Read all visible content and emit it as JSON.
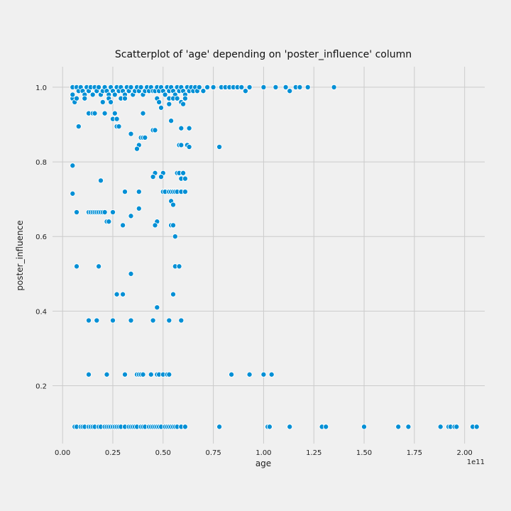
{
  "chart_data": {
    "type": "scatter",
    "title": "Scatterplot of 'age' depending on 'poster_influence' column",
    "xlabel": "age",
    "ylabel": "poster_influence",
    "x_offset_label": "1e11",
    "xlim": [
      -0.05,
      2.1
    ],
    "ylim": [
      0.045,
      1.055
    ],
    "x_scale_note": "x values expressed in units of 1e11",
    "xticks": [
      0.0,
      0.25,
      0.5,
      0.75,
      1.0,
      1.25,
      1.5,
      1.75,
      2.0
    ],
    "xtick_labels": [
      "0.00",
      "0.25",
      "0.50",
      "0.75",
      "1.00",
      "1.25",
      "1.50",
      "1.75",
      "2.00"
    ],
    "yticks": [
      0.2,
      0.4,
      0.6,
      0.8,
      1.0
    ],
    "ytick_labels": [
      "0.2",
      "0.4",
      "0.6",
      "0.8",
      "1.0"
    ],
    "grid": true,
    "marker_color": "#008fd5",
    "marker_edge": "#ffffff",
    "points": [
      [
        0.05,
        1.0
      ],
      [
        0.07,
        1.0
      ],
      [
        0.08,
        0.99
      ],
      [
        0.09,
        1.0
      ],
      [
        0.1,
        0.99
      ],
      [
        0.11,
        0.98
      ],
      [
        0.12,
        1.0
      ],
      [
        0.13,
        0.99
      ],
      [
        0.14,
        1.0
      ],
      [
        0.15,
        0.98
      ],
      [
        0.16,
        1.0
      ],
      [
        0.17,
        0.99
      ],
      [
        0.18,
        1.0
      ],
      [
        0.19,
        0.98
      ],
      [
        0.2,
        0.99
      ],
      [
        0.21,
        1.0
      ],
      [
        0.22,
        0.99
      ],
      [
        0.23,
        0.98
      ],
      [
        0.24,
        1.0
      ],
      [
        0.25,
        0.99
      ],
      [
        0.26,
        0.98
      ],
      [
        0.27,
        1.0
      ],
      [
        0.28,
        0.99
      ],
      [
        0.29,
        1.0
      ],
      [
        0.3,
        0.99
      ],
      [
        0.31,
        0.98
      ],
      [
        0.32,
        1.0
      ],
      [
        0.33,
        0.99
      ],
      [
        0.34,
        1.0
      ],
      [
        0.35,
        0.98
      ],
      [
        0.36,
        0.99
      ],
      [
        0.37,
        1.0
      ],
      [
        0.38,
        0.99
      ],
      [
        0.39,
        1.0
      ],
      [
        0.4,
        0.98
      ],
      [
        0.41,
        0.99
      ],
      [
        0.42,
        1.0
      ],
      [
        0.43,
        0.99
      ],
      [
        0.44,
        1.0
      ],
      [
        0.45,
        0.99
      ],
      [
        0.46,
        0.99
      ],
      [
        0.47,
        1.0
      ],
      [
        0.48,
        0.99
      ],
      [
        0.49,
        1.0
      ],
      [
        0.5,
        0.99
      ],
      [
        0.51,
        0.98
      ],
      [
        0.52,
        1.0
      ],
      [
        0.53,
        0.99
      ],
      [
        0.54,
        1.0
      ],
      [
        0.55,
        0.99
      ],
      [
        0.56,
        0.98
      ],
      [
        0.57,
        1.0
      ],
      [
        0.58,
        0.99
      ],
      [
        0.59,
        1.0
      ],
      [
        0.6,
        0.99
      ],
      [
        0.61,
        0.98
      ],
      [
        0.62,
        1.0
      ],
      [
        0.63,
        0.99
      ],
      [
        0.64,
        1.0
      ],
      [
        0.65,
        0.99
      ],
      [
        0.66,
        1.0
      ],
      [
        0.67,
        0.99
      ],
      [
        0.68,
        1.0
      ],
      [
        0.7,
        0.99
      ],
      [
        0.72,
        1.0
      ],
      [
        0.75,
        1.0
      ],
      [
        0.79,
        1.0
      ],
      [
        0.81,
        1.0
      ],
      [
        0.83,
        1.0
      ],
      [
        0.85,
        1.0
      ],
      [
        0.87,
        1.0
      ],
      [
        0.89,
        1.0
      ],
      [
        0.91,
        0.99
      ],
      [
        0.93,
        1.0
      ],
      [
        1.0,
        1.0
      ],
      [
        1.06,
        1.0
      ],
      [
        1.11,
        1.0
      ],
      [
        1.13,
        0.99
      ],
      [
        1.16,
        1.0
      ],
      [
        1.18,
        1.0
      ],
      [
        1.22,
        1.0
      ],
      [
        1.35,
        1.0
      ],
      [
        0.05,
        0.97
      ],
      [
        0.06,
        0.96
      ],
      [
        0.07,
        0.97
      ],
      [
        0.05,
        0.98
      ],
      [
        0.11,
        0.97
      ],
      [
        0.2,
        0.96
      ],
      [
        0.23,
        0.97
      ],
      [
        0.24,
        0.96
      ],
      [
        0.29,
        0.97
      ],
      [
        0.31,
        0.97
      ],
      [
        0.47,
        0.97
      ],
      [
        0.48,
        0.96
      ],
      [
        0.53,
        0.97
      ],
      [
        0.53,
        0.955
      ],
      [
        0.55,
        0.97
      ],
      [
        0.57,
        0.97
      ],
      [
        0.59,
        0.96
      ],
      [
        0.6,
        0.955
      ],
      [
        0.61,
        0.97
      ],
      [
        0.49,
        0.945
      ],
      [
        0.13,
        0.93
      ],
      [
        0.15,
        0.93
      ],
      [
        0.16,
        0.93
      ],
      [
        0.21,
        0.93
      ],
      [
        0.26,
        0.93
      ],
      [
        0.4,
        0.93
      ],
      [
        0.25,
        0.915
      ],
      [
        0.27,
        0.915
      ],
      [
        0.54,
        0.91
      ],
      [
        0.08,
        0.895
      ],
      [
        0.27,
        0.895
      ],
      [
        0.28,
        0.895
      ],
      [
        0.59,
        0.89
      ],
      [
        0.63,
        0.89
      ],
      [
        0.45,
        0.885
      ],
      [
        0.46,
        0.885
      ],
      [
        0.34,
        0.875
      ],
      [
        0.39,
        0.865
      ],
      [
        0.4,
        0.865
      ],
      [
        0.41,
        0.865
      ],
      [
        0.38,
        0.845
      ],
      [
        0.58,
        0.845
      ],
      [
        0.59,
        0.845
      ],
      [
        0.62,
        0.845
      ],
      [
        0.63,
        0.84
      ],
      [
        0.37,
        0.835
      ],
      [
        0.78,
        0.84
      ],
      [
        0.05,
        0.79
      ],
      [
        0.46,
        0.77
      ],
      [
        0.5,
        0.77
      ],
      [
        0.57,
        0.77
      ],
      [
        0.58,
        0.77
      ],
      [
        0.6,
        0.77
      ],
      [
        0.45,
        0.76
      ],
      [
        0.49,
        0.76
      ],
      [
        0.59,
        0.755
      ],
      [
        0.61,
        0.755
      ],
      [
        0.19,
        0.75
      ],
      [
        0.31,
        0.72
      ],
      [
        0.38,
        0.72
      ],
      [
        0.5,
        0.72
      ],
      [
        0.51,
        0.72
      ],
      [
        0.53,
        0.72
      ],
      [
        0.54,
        0.72
      ],
      [
        0.55,
        0.72
      ],
      [
        0.56,
        0.72
      ],
      [
        0.57,
        0.72
      ],
      [
        0.59,
        0.72
      ],
      [
        0.61,
        0.72
      ],
      [
        0.05,
        0.715
      ],
      [
        0.54,
        0.695
      ],
      [
        0.55,
        0.685
      ],
      [
        0.38,
        0.675
      ],
      [
        0.07,
        0.665
      ],
      [
        0.13,
        0.665
      ],
      [
        0.14,
        0.665
      ],
      [
        0.15,
        0.665
      ],
      [
        0.16,
        0.665
      ],
      [
        0.17,
        0.665
      ],
      [
        0.18,
        0.665
      ],
      [
        0.19,
        0.665
      ],
      [
        0.2,
        0.665
      ],
      [
        0.21,
        0.665
      ],
      [
        0.25,
        0.665
      ],
      [
        0.34,
        0.655
      ],
      [
        0.22,
        0.64
      ],
      [
        0.23,
        0.64
      ],
      [
        0.47,
        0.64
      ],
      [
        0.3,
        0.63
      ],
      [
        0.46,
        0.63
      ],
      [
        0.54,
        0.63
      ],
      [
        0.55,
        0.63
      ],
      [
        0.56,
        0.6
      ],
      [
        0.07,
        0.52
      ],
      [
        0.18,
        0.52
      ],
      [
        0.56,
        0.52
      ],
      [
        0.58,
        0.52
      ],
      [
        0.34,
        0.5
      ],
      [
        0.27,
        0.445
      ],
      [
        0.3,
        0.445
      ],
      [
        0.55,
        0.445
      ],
      [
        0.47,
        0.41
      ],
      [
        0.13,
        0.375
      ],
      [
        0.17,
        0.375
      ],
      [
        0.25,
        0.375
      ],
      [
        0.34,
        0.375
      ],
      [
        0.45,
        0.375
      ],
      [
        0.53,
        0.375
      ],
      [
        0.59,
        0.375
      ],
      [
        0.13,
        0.23
      ],
      [
        0.22,
        0.23
      ],
      [
        0.31,
        0.23
      ],
      [
        0.37,
        0.23
      ],
      [
        0.38,
        0.23
      ],
      [
        0.39,
        0.23
      ],
      [
        0.4,
        0.23
      ],
      [
        0.44,
        0.23
      ],
      [
        0.47,
        0.23
      ],
      [
        0.48,
        0.23
      ],
      [
        0.5,
        0.23
      ],
      [
        0.52,
        0.23
      ],
      [
        0.53,
        0.23
      ],
      [
        0.84,
        0.23
      ],
      [
        0.93,
        0.23
      ],
      [
        1.0,
        0.23
      ],
      [
        1.04,
        0.23
      ],
      [
        0.06,
        0.09
      ],
      [
        0.07,
        0.09
      ],
      [
        0.09,
        0.09
      ],
      [
        0.1,
        0.09
      ],
      [
        0.11,
        0.09
      ],
      [
        0.13,
        0.09
      ],
      [
        0.14,
        0.09
      ],
      [
        0.15,
        0.09
      ],
      [
        0.16,
        0.09
      ],
      [
        0.18,
        0.09
      ],
      [
        0.19,
        0.09
      ],
      [
        0.21,
        0.09
      ],
      [
        0.22,
        0.09
      ],
      [
        0.23,
        0.09
      ],
      [
        0.24,
        0.09
      ],
      [
        0.25,
        0.09
      ],
      [
        0.26,
        0.09
      ],
      [
        0.27,
        0.09
      ],
      [
        0.28,
        0.09
      ],
      [
        0.29,
        0.09
      ],
      [
        0.31,
        0.09
      ],
      [
        0.33,
        0.09
      ],
      [
        0.34,
        0.09
      ],
      [
        0.35,
        0.09
      ],
      [
        0.36,
        0.09
      ],
      [
        0.37,
        0.09
      ],
      [
        0.39,
        0.09
      ],
      [
        0.4,
        0.09
      ],
      [
        0.41,
        0.09
      ],
      [
        0.43,
        0.09
      ],
      [
        0.44,
        0.09
      ],
      [
        0.45,
        0.09
      ],
      [
        0.46,
        0.09
      ],
      [
        0.47,
        0.09
      ],
      [
        0.48,
        0.09
      ],
      [
        0.49,
        0.09
      ],
      [
        0.51,
        0.09
      ],
      [
        0.52,
        0.09
      ],
      [
        0.53,
        0.09
      ],
      [
        0.54,
        0.09
      ],
      [
        0.55,
        0.09
      ],
      [
        0.56,
        0.09
      ],
      [
        0.57,
        0.09
      ],
      [
        0.59,
        0.09
      ],
      [
        0.61,
        0.09
      ],
      [
        0.78,
        0.09
      ],
      [
        1.02,
        0.09
      ],
      [
        1.03,
        0.09
      ],
      [
        1.13,
        0.09
      ],
      [
        1.29,
        0.09
      ],
      [
        1.31,
        0.09
      ],
      [
        1.5,
        0.09
      ],
      [
        1.67,
        0.09
      ],
      [
        1.72,
        0.09
      ],
      [
        1.88,
        0.09
      ],
      [
        1.92,
        0.09
      ],
      [
        1.93,
        0.09
      ],
      [
        1.95,
        0.09
      ],
      [
        1.96,
        0.09
      ],
      [
        2.04,
        0.09
      ],
      [
        2.06,
        0.09
      ]
    ]
  }
}
